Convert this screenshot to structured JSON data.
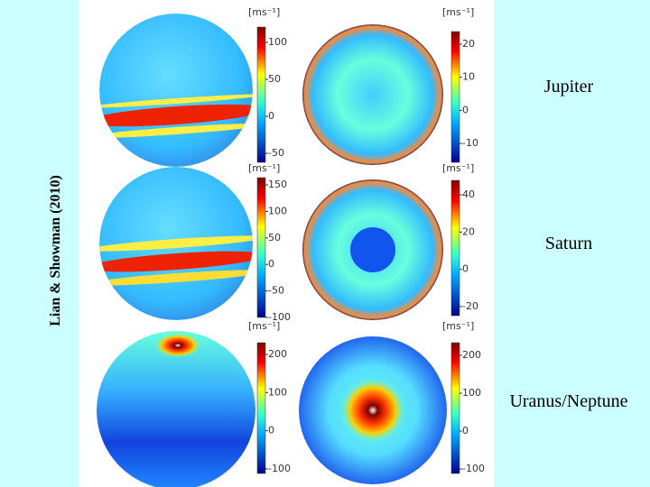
{
  "credit": "Lian & Showman (2010)",
  "rows": [
    {
      "label": "Jupiter",
      "left": {
        "unit": "[ms⁻¹]",
        "ticks": [
          100,
          50,
          0,
          -50
        ]
      },
      "right": {
        "unit": "[ms⁻¹]",
        "ticks": [
          20,
          10,
          0,
          -10
        ]
      }
    },
    {
      "label": "Saturn",
      "left": {
        "unit": "[ms⁻¹]",
        "ticks": [
          150,
          100,
          50,
          0,
          -50,
          -100
        ]
      },
      "right": {
        "unit": "[ms⁻¹]",
        "ticks": [
          40,
          20,
          0,
          -20
        ]
      }
    },
    {
      "label": "Uranus/Neptune",
      "left": {
        "unit": "[ms⁻¹]",
        "ticks": [
          200,
          100,
          0,
          -100
        ]
      },
      "right": {
        "unit": "[ms⁻¹]",
        "ticks": [
          200,
          100,
          0,
          -100
        ]
      }
    }
  ]
}
